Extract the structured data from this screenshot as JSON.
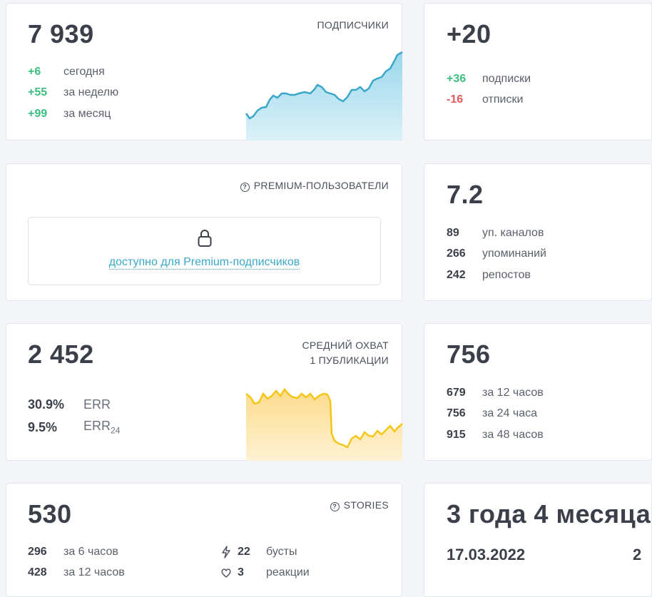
{
  "subscribers": {
    "total": "7 939",
    "label": "ПОДПИСЧИКИ",
    "rows": [
      {
        "value": "+6",
        "text": "сегодня"
      },
      {
        "value": "+55",
        "text": "за неделю"
      },
      {
        "value": "+99",
        "text": "за месяц"
      }
    ],
    "color": "#3aa7c9"
  },
  "net": {
    "total": "+20",
    "rows": [
      {
        "value": "+36",
        "text": "подписки"
      },
      {
        "value": "-16",
        "text": "отписки"
      }
    ]
  },
  "premium": {
    "label": "PREMIUM-ПОЛЬЗОВАТЕЛИ",
    "icon": "help-icon",
    "link": "доступно для Premium-подписчиков",
    "lock_icon": "lock-icon"
  },
  "citation": {
    "total": "7.2",
    "rows": [
      {
        "value": "89",
        "text": "уп. каналов"
      },
      {
        "value": "266",
        "text": "упоминаний"
      },
      {
        "value": "242",
        "text": "репостов"
      }
    ]
  },
  "reach": {
    "total": "2 452",
    "label_line1": "СРЕДНИЙ ОХВАТ",
    "label_line2": "1 ПУБЛИКАЦИИ",
    "err": [
      {
        "value": "30.9%",
        "text": "ERR",
        "sub": ""
      },
      {
        "value": "9.5%",
        "text": "ERR",
        "sub": "24"
      }
    ],
    "color": "#f5c518"
  },
  "views": {
    "total": "756",
    "rows": [
      {
        "value": "679",
        "text": "за 12 часов"
      },
      {
        "value": "756",
        "text": "за 24 часа"
      },
      {
        "value": "915",
        "text": "за 48 часов"
      }
    ]
  },
  "stories": {
    "total": "530",
    "label": "STORIES",
    "left_rows": [
      {
        "value": "296",
        "text": "за 6 часов"
      },
      {
        "value": "428",
        "text": "за 12 часов"
      }
    ],
    "right_rows": [
      {
        "value": "22",
        "text": "бусты",
        "icon": "lightning-icon"
      },
      {
        "value": "3",
        "text": "реакции",
        "icon": "reaction-icon"
      }
    ]
  },
  "age": {
    "total": "3 года 4 месяца",
    "date": "17.03.2022",
    "extra": "2"
  }
}
